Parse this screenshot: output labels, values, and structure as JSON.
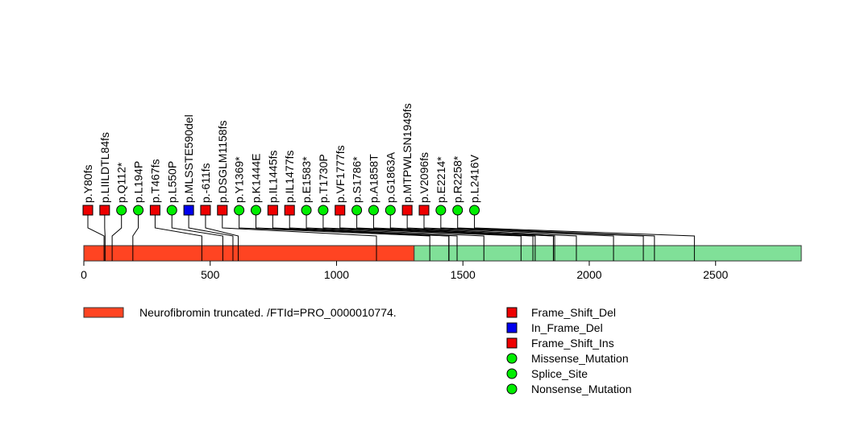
{
  "chart_data": {
    "type": "lollipop",
    "protein_length": 2839,
    "x_ticks": [
      0,
      500,
      1000,
      1500,
      2000,
      2500
    ],
    "domains": [
      {
        "name": "Neurofibromin truncated. /FTId=PRO_0000010774.",
        "start": 1,
        "end": 1308,
        "color": "#ff4422"
      },
      {
        "name": "",
        "start": 1308,
        "end": 2839,
        "color": "#80e098"
      }
    ],
    "domain_legend": [
      {
        "label": "Neurofibromin truncated. /FTId=PRO_0000010774.",
        "color": "#ff4422"
      }
    ],
    "mutation_types": [
      {
        "label": "Frame_Shift_Del",
        "shape": "square",
        "color": "#ee0000"
      },
      {
        "label": "In_Frame_Del",
        "shape": "square",
        "color": "#0000ee"
      },
      {
        "label": "Frame_Shift_Ins",
        "shape": "square",
        "color": "#ee0000"
      },
      {
        "label": "Missense_Mutation",
        "shape": "circle",
        "color": "#00ee00"
      },
      {
        "label": "Splice_Site",
        "shape": "circle",
        "color": "#00ee00"
      },
      {
        "label": "Nonsense_Mutation",
        "shape": "circle",
        "color": "#00ee00"
      }
    ],
    "mutations": [
      {
        "label": "p.Y80fs",
        "position": 80,
        "type": "Frame_Shift_Del"
      },
      {
        "label": "p.LIILDTL84fs",
        "position": 84,
        "type": "Frame_Shift_Del"
      },
      {
        "label": "p.Q112*",
        "position": 112,
        "type": "Nonsense_Mutation"
      },
      {
        "label": "p.L194P",
        "position": 194,
        "type": "Missense_Mutation"
      },
      {
        "label": "p.T467fs",
        "position": 467,
        "type": "Frame_Shift_Del"
      },
      {
        "label": "p.L550P",
        "position": 550,
        "type": "Missense_Mutation"
      },
      {
        "label": "p.MLSSTE590del",
        "position": 590,
        "type": "In_Frame_Del"
      },
      {
        "label": "p.-611fs",
        "position": 611,
        "type": "Frame_Shift_Ins"
      },
      {
        "label": "p.DSGLM1158fs",
        "position": 1158,
        "type": "Frame_Shift_Del"
      },
      {
        "label": "p.Y1369*",
        "position": 1369,
        "type": "Nonsense_Mutation"
      },
      {
        "label": "p.K1444E",
        "position": 1444,
        "type": "Missense_Mutation"
      },
      {
        "label": "p.IL1445fs",
        "position": 1445,
        "type": "Frame_Shift_Del"
      },
      {
        "label": "p.IL1477fs",
        "position": 1477,
        "type": "Frame_Shift_Del"
      },
      {
        "label": "p.E1583*",
        "position": 1583,
        "type": "Nonsense_Mutation"
      },
      {
        "label": "p.T1730P",
        "position": 1730,
        "type": "Missense_Mutation"
      },
      {
        "label": "p.VF1777fs",
        "position": 1777,
        "type": "Frame_Shift_Del"
      },
      {
        "label": "p.S1786*",
        "position": 1786,
        "type": "Nonsense_Mutation"
      },
      {
        "label": "p.A1858T",
        "position": 1858,
        "type": "Missense_Mutation"
      },
      {
        "label": "p.G1863A",
        "position": 1863,
        "type": "Missense_Mutation"
      },
      {
        "label": "p.MTPWLSN1949fs",
        "position": 1949,
        "type": "Frame_Shift_Del"
      },
      {
        "label": "p.V2096fs",
        "position": 2096,
        "type": "Frame_Shift_Del"
      },
      {
        "label": "p.E2214*",
        "position": 2214,
        "type": "Nonsense_Mutation"
      },
      {
        "label": "p.R2258*",
        "position": 2258,
        "type": "Nonsense_Mutation"
      },
      {
        "label": "p.L2416V",
        "position": 2416,
        "type": "Missense_Mutation"
      }
    ]
  }
}
